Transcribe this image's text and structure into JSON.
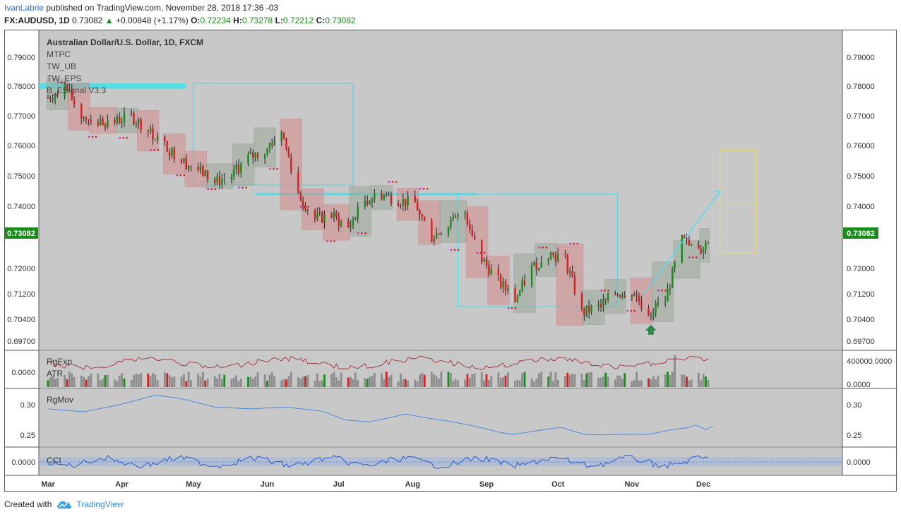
{
  "header": {
    "author": "IvanLabrie",
    "published": "published on TradingView.com, November 28, 2018 17:36 -03",
    "symbol": "FX:AUDUSD",
    "interval": "1D",
    "last": "0.73082",
    "change": "+0.00848 (+1.17%)",
    "o_label": "O:",
    "o": "0.72234",
    "h_label": "H:",
    "h": "0.73278",
    "l_label": "L:",
    "l": "0.72212",
    "c_label": "C:",
    "c": "0.73082"
  },
  "footer": {
    "created_with": "Created with",
    "brand": "TradingView"
  },
  "colors": {
    "up": "#1a8a1a",
    "down": "#d32020",
    "panel_bg": "#c8c8c8",
    "accent_cyan": "#40e0e8",
    "price_tag": "#1a8a1a"
  },
  "chart_data": {
    "type": "candlestick",
    "title": "Australian Dollar/U.S. Dollar, 1D, FXCM",
    "indicators": [
      "MTPC",
      "TW_UB",
      "TW_EPS",
      "B_ESignal V3.3"
    ],
    "y_ticks": [
      "0.79000",
      "0.78000",
      "0.77000",
      "0.76000",
      "0.75000",
      "0.74000",
      "0.72000",
      "0.71200",
      "0.70400",
      "0.69700"
    ],
    "y_tick_values": [
      0.79,
      0.78,
      0.77,
      0.76,
      0.75,
      0.74,
      0.72,
      0.712,
      0.704,
      0.697
    ],
    "last_price_tag": "0.73082",
    "x_ticks": [
      "Mar",
      "Apr",
      "May",
      "Jun",
      "Jul",
      "Aug",
      "Sep",
      "Oct",
      "Nov",
      "Dec"
    ],
    "x_range": [
      "2018-03-01",
      "2018-12-15"
    ],
    "month_start_days": [
      0,
      31,
      61,
      92,
      122,
      153,
      184,
      214,
      245,
      275
    ],
    "closes": [
      [
        0,
        0.776
      ],
      [
        7,
        0.78
      ],
      [
        14,
        0.77
      ],
      [
        21,
        0.768
      ],
      [
        28,
        0.768
      ],
      [
        35,
        0.77
      ],
      [
        42,
        0.765
      ],
      [
        49,
        0.76
      ],
      [
        56,
        0.755
      ],
      [
        63,
        0.752
      ],
      [
        70,
        0.748
      ],
      [
        77,
        0.75
      ],
      [
        84,
        0.756
      ],
      [
        91,
        0.758
      ],
      [
        98,
        0.765
      ],
      [
        105,
        0.744
      ],
      [
        112,
        0.736
      ],
      [
        119,
        0.737
      ],
      [
        126,
        0.733
      ],
      [
        133,
        0.742
      ],
      [
        140,
        0.744
      ],
      [
        147,
        0.742
      ],
      [
        154,
        0.741
      ],
      [
        161,
        0.73
      ],
      [
        168,
        0.734
      ],
      [
        175,
        0.738
      ],
      [
        182,
        0.723
      ],
      [
        189,
        0.716
      ],
      [
        196,
        0.71
      ],
      [
        203,
        0.72
      ],
      [
        210,
        0.725
      ],
      [
        217,
        0.723
      ],
      [
        224,
        0.706
      ],
      [
        231,
        0.708
      ],
      [
        238,
        0.712
      ],
      [
        245,
        0.713
      ],
      [
        252,
        0.706
      ],
      [
        259,
        0.71
      ],
      [
        266,
        0.729
      ],
      [
        273,
        0.725
      ],
      [
        279,
        0.7308
      ]
    ],
    "boxes": [
      {
        "start": 61,
        "end": 128,
        "low": 0.747,
        "high": 0.781,
        "color": "#40d8e8"
      },
      {
        "start": 172,
        "end": 239,
        "low": 0.708,
        "high": 0.744,
        "color": "#40d8e8"
      },
      {
        "start": 282,
        "end": 297,
        "low": 0.725,
        "high": 0.7585,
        "color": "#e8e060"
      }
    ],
    "projection": {
      "from": [
        250,
        0.712
      ],
      "to": [
        282,
        0.745
      ]
    },
    "panels": [
      {
        "name": "RgExp",
        "sub": "ATR",
        "left_tick": "0.0060",
        "right_ticks": [
          "400000.0000",
          "0.0000"
        ]
      },
      {
        "name": "RgMov",
        "left_ticks": [
          "0.30",
          "0.25"
        ],
        "right_ticks": [
          "0.30",
          "0.25"
        ],
        "values": [
          [
            0,
            0.293
          ],
          [
            15,
            0.288
          ],
          [
            30,
            0.3
          ],
          [
            45,
            0.316
          ],
          [
            55,
            0.311
          ],
          [
            70,
            0.296
          ],
          [
            85,
            0.293
          ],
          [
            100,
            0.296
          ],
          [
            115,
            0.289
          ],
          [
            125,
            0.274
          ],
          [
            135,
            0.271
          ],
          [
            150,
            0.284
          ],
          [
            160,
            0.277
          ],
          [
            170,
            0.271
          ],
          [
            180,
            0.263
          ],
          [
            190,
            0.253
          ],
          [
            195,
            0.25
          ],
          [
            205,
            0.256
          ],
          [
            215,
            0.262
          ],
          [
            225,
            0.25
          ],
          [
            232,
            0.249
          ],
          [
            240,
            0.25
          ],
          [
            252,
            0.25
          ],
          [
            262,
            0.258
          ],
          [
            268,
            0.261
          ],
          [
            272,
            0.266
          ],
          [
            276,
            0.258
          ],
          [
            279,
            0.264
          ]
        ]
      },
      {
        "name": "CCI",
        "left_tick": "0.0000",
        "right_tick": "0.0000"
      }
    ]
  }
}
